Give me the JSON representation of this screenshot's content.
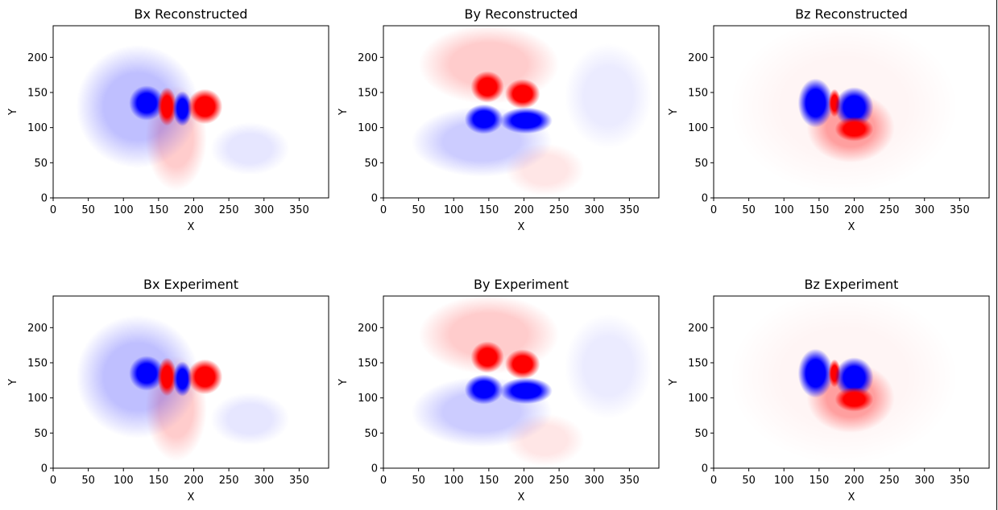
{
  "figure": {
    "colormap": "bwr",
    "colors": {
      "negative": "#0000ff",
      "zero": "#ffffff",
      "positive": "#ff0000",
      "axes": "#000000"
    }
  },
  "chart_data": [
    {
      "type": "heatmap",
      "title": "Bx Reconstructed",
      "xlabel": "X",
      "ylabel": "Y",
      "xlim": [
        0,
        392
      ],
      "ylim": [
        0,
        245
      ],
      "xticks": [
        0,
        50,
        100,
        150,
        200,
        250,
        300,
        350
      ],
      "yticks": [
        0,
        50,
        100,
        150,
        200
      ],
      "xtick_labels": [
        "0",
        "50",
        "100",
        "150",
        "200",
        "250",
        "300",
        "350"
      ],
      "ytick_labels": [
        "0",
        "50",
        "100",
        "150",
        "200"
      ],
      "grid": false,
      "colormap": "bwr",
      "field": "Bx"
    },
    {
      "type": "heatmap",
      "title": "By Reconstructed",
      "xlabel": "X",
      "ylabel": "Y",
      "xlim": [
        0,
        392
      ],
      "ylim": [
        0,
        245
      ],
      "xticks": [
        0,
        50,
        100,
        150,
        200,
        250,
        300,
        350
      ],
      "yticks": [
        0,
        50,
        100,
        150,
        200
      ],
      "xtick_labels": [
        "0",
        "50",
        "100",
        "150",
        "200",
        "250",
        "300",
        "350"
      ],
      "ytick_labels": [
        "0",
        "50",
        "100",
        "150",
        "200"
      ],
      "grid": false,
      "colormap": "bwr",
      "field": "By"
    },
    {
      "type": "heatmap",
      "title": "Bz Reconstructed",
      "xlabel": "X",
      "ylabel": "Y",
      "xlim": [
        0,
        392
      ],
      "ylim": [
        0,
        245
      ],
      "xticks": [
        0,
        50,
        100,
        150,
        200,
        250,
        300,
        350
      ],
      "yticks": [
        0,
        50,
        100,
        150,
        200
      ],
      "xtick_labels": [
        "0",
        "50",
        "100",
        "150",
        "200",
        "250",
        "300",
        "350"
      ],
      "ytick_labels": [
        "0",
        "50",
        "100",
        "150",
        "200"
      ],
      "grid": false,
      "colormap": "bwr",
      "field": "Bz"
    },
    {
      "type": "heatmap",
      "title": "Bx Experiment",
      "xlabel": "X",
      "ylabel": "Y",
      "xlim": [
        0,
        392
      ],
      "ylim": [
        0,
        245
      ],
      "xticks": [
        0,
        50,
        100,
        150,
        200,
        250,
        300,
        350
      ],
      "yticks": [
        0,
        50,
        100,
        150,
        200
      ],
      "xtick_labels": [
        "0",
        "50",
        "100",
        "150",
        "200",
        "250",
        "300",
        "350"
      ],
      "ytick_labels": [
        "0",
        "50",
        "100",
        "150",
        "200"
      ],
      "grid": false,
      "colormap": "bwr",
      "field": "Bx"
    },
    {
      "type": "heatmap",
      "title": "By Experiment",
      "xlabel": "X",
      "ylabel": "Y",
      "xlim": [
        0,
        392
      ],
      "ylim": [
        0,
        245
      ],
      "xticks": [
        0,
        50,
        100,
        150,
        200,
        250,
        300,
        350
      ],
      "yticks": [
        0,
        50,
        100,
        150,
        200
      ],
      "xtick_labels": [
        "0",
        "50",
        "100",
        "150",
        "200",
        "250",
        "300",
        "350"
      ],
      "ytick_labels": [
        "0",
        "50",
        "100",
        "150",
        "200"
      ],
      "grid": false,
      "colormap": "bwr",
      "field": "By"
    },
    {
      "type": "heatmap",
      "title": "Bz Experiment",
      "xlabel": "X",
      "ylabel": "Y",
      "xlim": [
        0,
        392
      ],
      "ylim": [
        0,
        245
      ],
      "xticks": [
        0,
        50,
        100,
        150,
        200,
        250,
        300,
        350
      ],
      "yticks": [
        0,
        50,
        100,
        150,
        200
      ],
      "xtick_labels": [
        "0",
        "50",
        "100",
        "150",
        "200",
        "250",
        "300",
        "350"
      ],
      "ytick_labels": [
        "0",
        "50",
        "100",
        "150",
        "200"
      ],
      "grid": false,
      "colormap": "bwr",
      "field": "Bz"
    }
  ]
}
